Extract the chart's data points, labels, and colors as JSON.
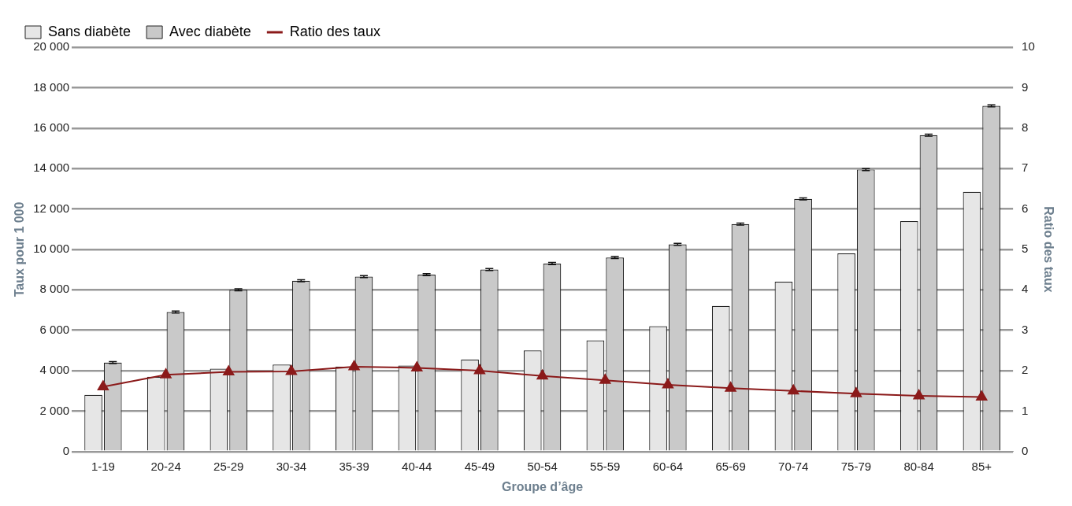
{
  "chart_data": {
    "type": "bar",
    "xlabel": "Groupe d’âge",
    "ylabel": "Taux pour 1 000",
    "y2label": "Ratio des taux",
    "categories": [
      "1-19",
      "20-24",
      "25-29",
      "30-34",
      "35-39",
      "40-44",
      "45-49",
      "50-54",
      "55-59",
      "60-64",
      "65-69",
      "70-74",
      "75-79",
      "80-84",
      "85+"
    ],
    "series": [
      {
        "name": "Sans diabète",
        "color": "#e6e6e6",
        "values": [
          2800,
          3700,
          4100,
          4300,
          4200,
          4250,
          4550,
          5000,
          5500,
          6200,
          7200,
          8400,
          9800,
          11400,
          12850
        ]
      },
      {
        "name": "Avec diabète",
        "color": "#c9c9c9",
        "values": [
          4400,
          6900,
          8000,
          8450,
          8650,
          8750,
          9000,
          9300,
          9600,
          10250,
          11250,
          12500,
          13950,
          15650,
          17100
        ],
        "errors": [
          50,
          50,
          50,
          50,
          50,
          50,
          50,
          50,
          50,
          50,
          50,
          50,
          50,
          50,
          50
        ]
      },
      {
        "name": "Ratio des taux",
        "type": "line",
        "axis": "y2",
        "color": "#8b1a1a",
        "marker": "triangle",
        "values": [
          1.6,
          1.9,
          1.97,
          1.98,
          2.1,
          2.07,
          2.0,
          1.87,
          1.76,
          1.65,
          1.57,
          1.5,
          1.43,
          1.38,
          1.35
        ]
      }
    ],
    "ylim": [
      0,
      20000
    ],
    "yticks": [
      0,
      {
        "value": 2000,
        "label": "2 000"
      },
      {
        "value": 4000,
        "label": "4 000"
      },
      {
        "value": 6000,
        "label": "6 000"
      },
      {
        "value": 8000,
        "label": "8 000"
      },
      {
        "value": 10000,
        "label": "10 000"
      },
      {
        "value": 12000,
        "label": "12 000"
      },
      {
        "value": 14000,
        "label": "14 000"
      },
      {
        "value": 16000,
        "label": "16 000"
      },
      {
        "value": 18000,
        "label": "18 000"
      },
      {
        "value": 20000,
        "label": "20 000"
      }
    ],
    "y2lim": [
      0,
      10
    ],
    "y2ticks": [
      0,
      1,
      2,
      3,
      4,
      5,
      6,
      7,
      8,
      9,
      10
    ],
    "grid": "y",
    "legend": "top left"
  }
}
